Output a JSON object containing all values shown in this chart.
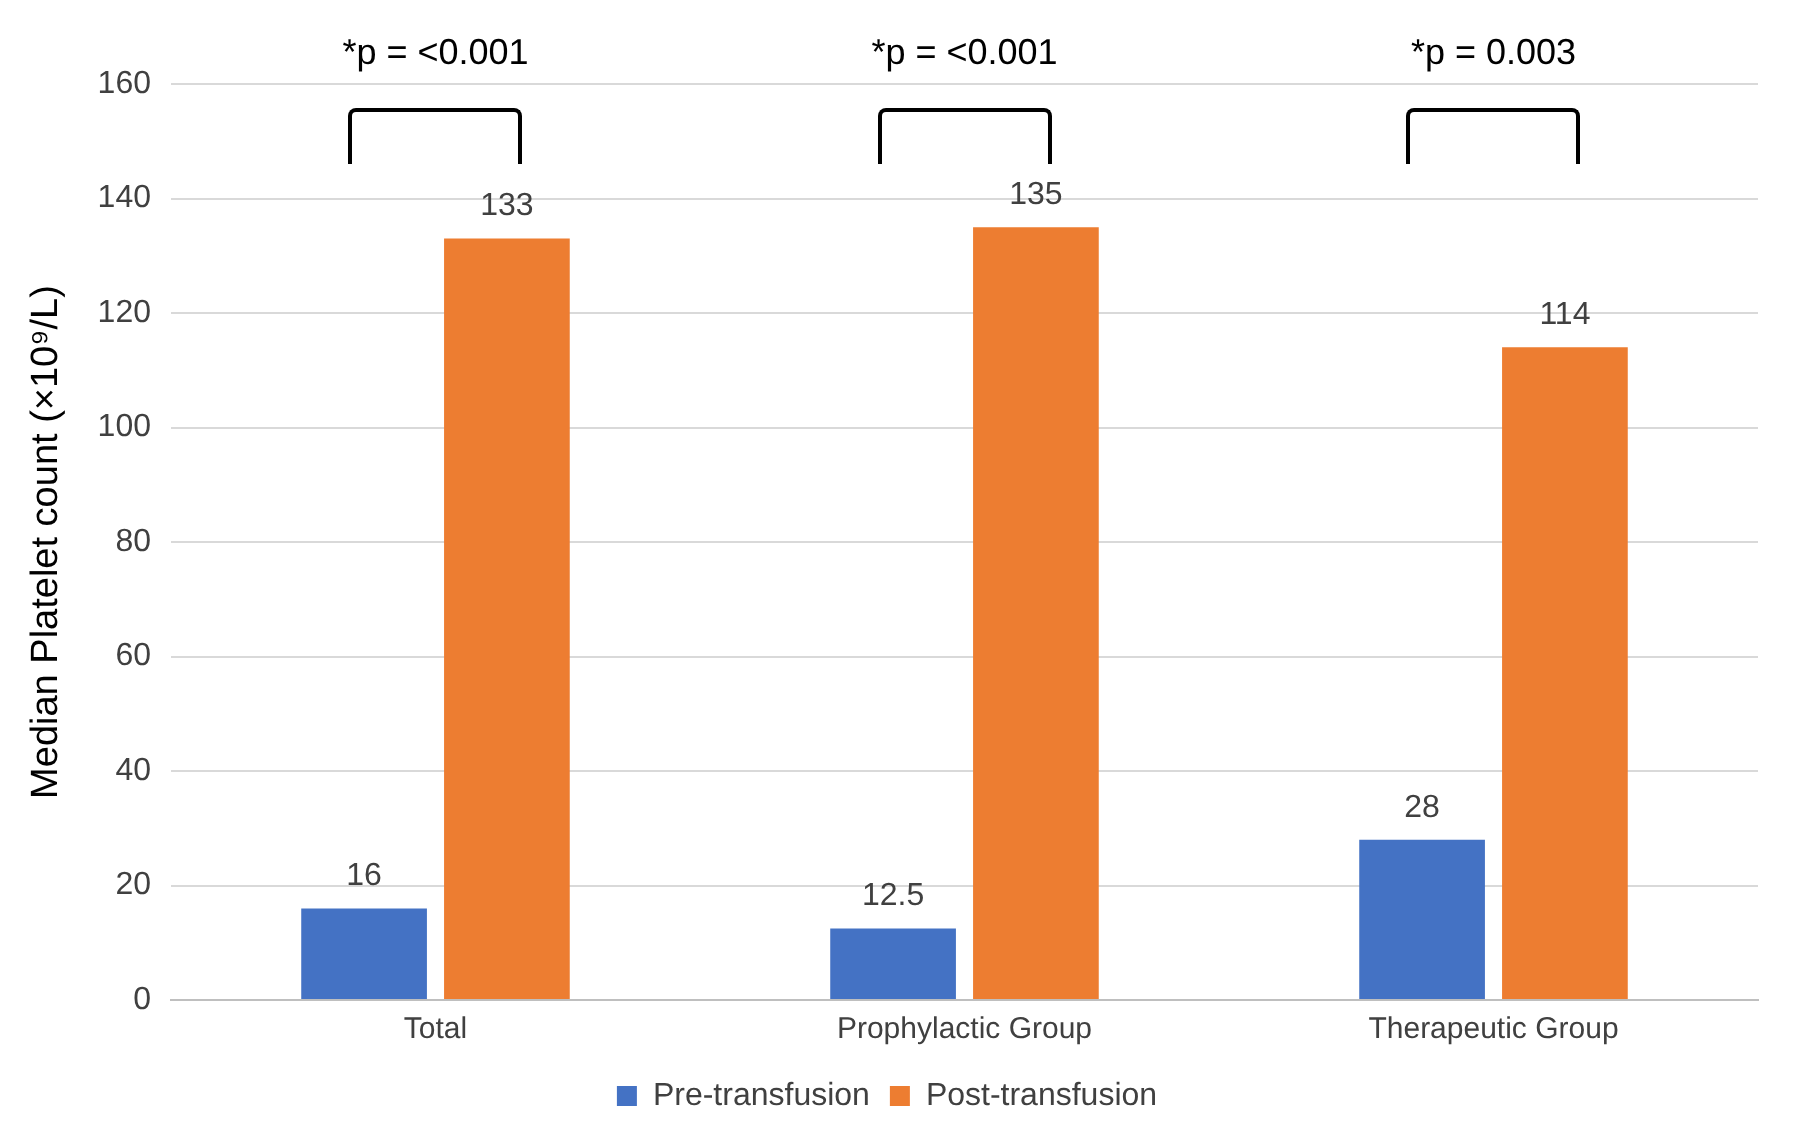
{
  "chart_data": {
    "type": "bar",
    "ylabel": "Median Platelet count (×10⁹/L)",
    "categories": [
      "Total",
      "Prophylactic Group",
      "Therapeutic Group"
    ],
    "series": [
      {
        "name": "Pre-transfusion",
        "color": "#4472c4",
        "values": [
          16,
          12.5,
          28
        ]
      },
      {
        "name": "Post-transfusion",
        "color": "#ed7d31",
        "values": [
          133,
          135,
          114
        ]
      }
    ],
    "ylim": [
      0,
      160
    ],
    "yticks": [
      0,
      20,
      40,
      60,
      80,
      100,
      120,
      140,
      160
    ],
    "grid": "y",
    "legend": "bottom",
    "data_labels": true,
    "annotations": [
      "*p = <0.001",
      "*p = <0.001",
      "*p = 0.003"
    ]
  }
}
